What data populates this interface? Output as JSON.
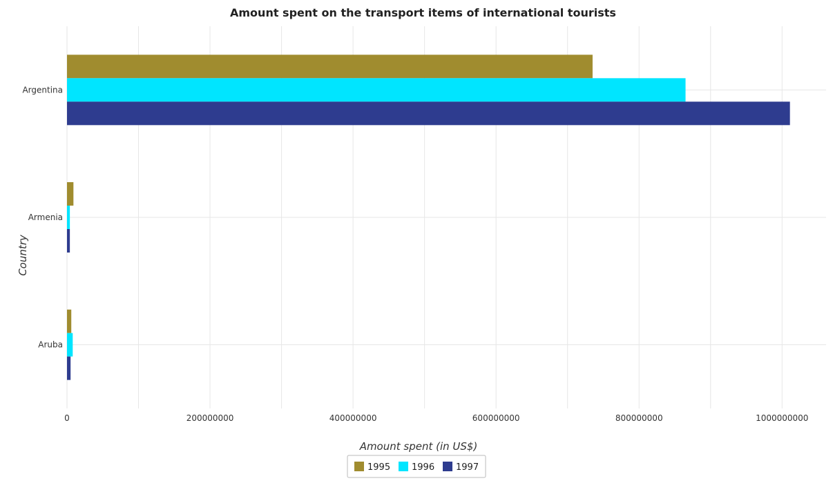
{
  "chart_data": {
    "type": "bar",
    "orientation": "horizontal",
    "title": "Amount spent on the transport items of international tourists",
    "xlabel": "Amount spent (in US$)",
    "ylabel": "Country",
    "categories": [
      "Argentina",
      "Armenia",
      "Aruba"
    ],
    "series": [
      {
        "name": "1995",
        "color": "#a08c2f",
        "values": [
          735000000,
          9000000,
          6000000
        ]
      },
      {
        "name": "1996",
        "color": "#00e5ff",
        "values": [
          865000000,
          4000000,
          8000000
        ]
      },
      {
        "name": "1997",
        "color": "#2e3c8f",
        "values": [
          1011000000,
          4000000,
          5000000
        ]
      }
    ],
    "xlim": [
      0,
      1061550000
    ],
    "xticks": [
      0,
      200000000,
      400000000,
      600000000,
      800000000,
      1000000000
    ],
    "xtick_labels": [
      "0",
      "200000000",
      "400000000",
      "600000000",
      "800000000",
      "1000000000"
    ],
    "grid": true,
    "legend_position": "bottom-center"
  }
}
